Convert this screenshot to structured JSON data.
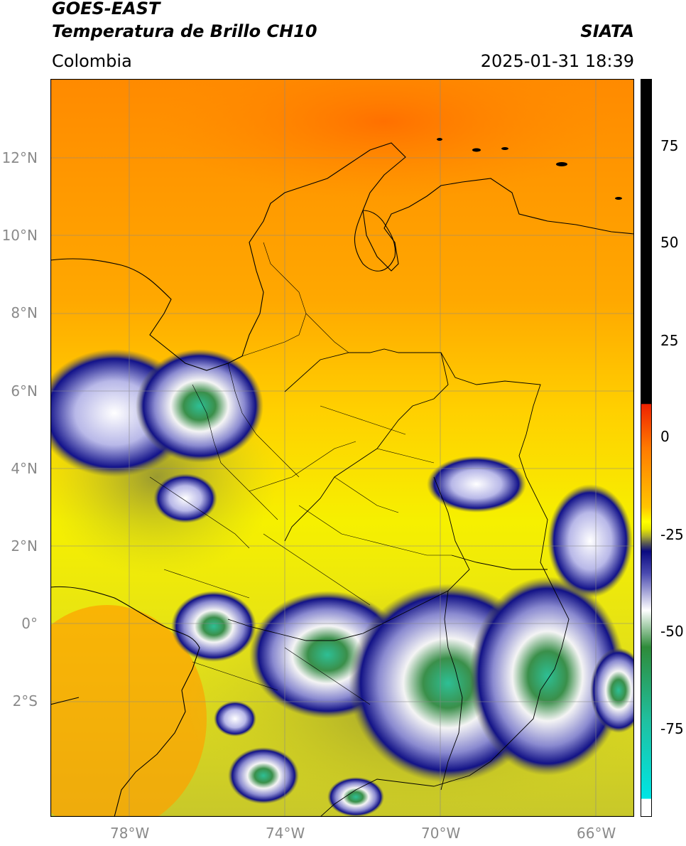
{
  "header": {
    "title_line1": "GOES-EAST",
    "title_line2": "Temperatura de Brillo CH10",
    "subtitle": "Colombia",
    "agency": "SIATA",
    "datetime": "2025-01-31 18:39"
  },
  "map": {
    "lat_labels": [
      "12°N",
      "10°N",
      "8°N",
      "6°N",
      "4°N",
      "2°N",
      "0°",
      "2°S"
    ],
    "lon_labels": [
      "78°W",
      "74°W",
      "70°W",
      "66°W"
    ]
  },
  "colorbar": {
    "ticks": [
      "75",
      "50",
      "25",
      "0",
      "-25",
      "-50",
      "-75"
    ],
    "colors": {
      "black": "#000000",
      "red": "#ee2200",
      "orange": "#ff8c00",
      "yellow": "#ffff00",
      "olive": "#8f8f2a",
      "navy": "#0a0a80",
      "white": "#ffffff",
      "green": "#2e8b3a",
      "teal": "#20c0a0",
      "cyan": "#00e5e5"
    }
  }
}
